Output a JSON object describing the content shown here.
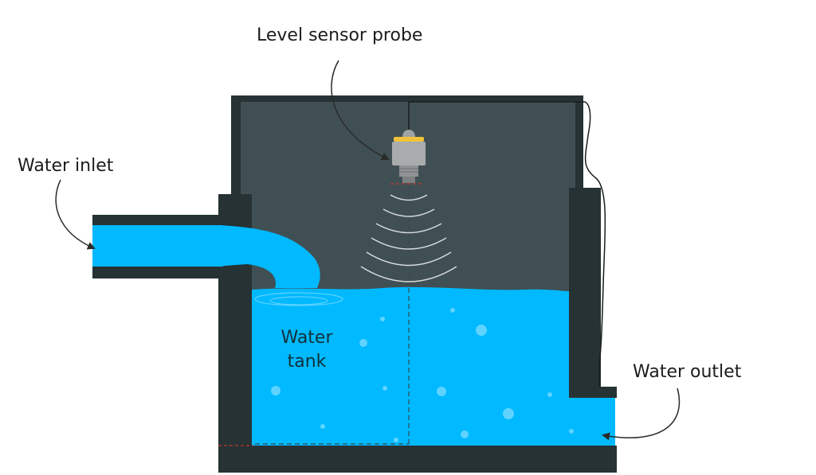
{
  "labels": {
    "sensor": "Level sensor probe",
    "inlet": "Water inlet",
    "outlet": "Water outlet",
    "tank_line1": "Water",
    "tank_line2": "tank"
  },
  "colors": {
    "tank_wall": "#263234",
    "tank_interior": "#404f54",
    "water": "#00b9ff",
    "water_light": "#5fd3ff",
    "sensor_body": "#a9acad",
    "sensor_band": "#f2c33a",
    "dashed_red": "#c0392b",
    "arrow": "#2a2a2a"
  },
  "icons": {
    "sensor": "ultrasonic-sensor-icon",
    "waves": "sound-wave-icon"
  }
}
